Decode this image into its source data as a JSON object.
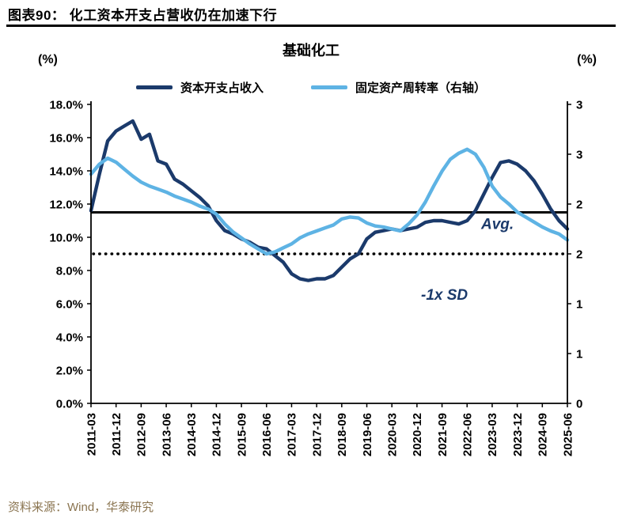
{
  "header": {
    "title": "图表90：  化工资本开支占营收仍在加速下行"
  },
  "footer": {
    "source": "资料来源：Wind，华泰研究"
  },
  "chart_data": {
    "type": "line",
    "title": "基础化工",
    "left_axis": {
      "unit": "(%)",
      "min": 0,
      "max": 18,
      "tick_step": 2,
      "tick_labels": [
        "18.0%",
        "16.0%",
        "14.0%",
        "12.0%",
        "10.0%",
        "8.0%",
        "6.0%",
        "4.0%",
        "2.0%",
        "0.0%"
      ]
    },
    "right_axis": {
      "unit": "(%)",
      "min": 0,
      "max": 3,
      "tick_step": 0.5,
      "tick_labels": [
        "3",
        "3",
        "2",
        "2",
        "1",
        "1",
        "0"
      ]
    },
    "x": [
      "2011-03",
      "2011-06",
      "2011-09",
      "2011-12",
      "2012-03",
      "2012-06",
      "2012-09",
      "2012-12",
      "2013-03",
      "2013-06",
      "2013-09",
      "2013-12",
      "2014-03",
      "2014-06",
      "2014-09",
      "2014-12",
      "2015-03",
      "2015-06",
      "2015-09",
      "2015-12",
      "2016-03",
      "2016-06",
      "2016-09",
      "2016-12",
      "2017-03",
      "2017-06",
      "2017-09",
      "2017-12",
      "2018-03",
      "2018-06",
      "2018-09",
      "2018-12",
      "2019-03",
      "2019-06",
      "2019-09",
      "2019-12",
      "2020-03",
      "2020-06",
      "2020-09",
      "2020-12",
      "2021-03",
      "2021-06",
      "2021-09",
      "2021-12",
      "2022-03",
      "2022-06",
      "2022-09",
      "2022-12",
      "2023-03",
      "2023-06",
      "2023-09",
      "2023-12",
      "2024-03",
      "2024-06",
      "2024-09",
      "2024-12",
      "2025-03",
      "2025-06"
    ],
    "x_tick_every": 3,
    "series": [
      {
        "name": "资本开支占收入",
        "axis": "left",
        "color": "#1b3a6b",
        "values": [
          11.6,
          13.8,
          15.8,
          16.4,
          16.7,
          17.0,
          15.9,
          16.2,
          14.6,
          14.4,
          13.5,
          13.2,
          12.8,
          12.4,
          11.9,
          11.0,
          10.4,
          10.2,
          9.9,
          9.7,
          9.4,
          9.3,
          8.9,
          8.5,
          7.8,
          7.5,
          7.4,
          7.5,
          7.5,
          7.7,
          8.2,
          8.7,
          9.0,
          9.9,
          10.3,
          10.4,
          10.5,
          10.4,
          10.5,
          10.6,
          10.9,
          11.0,
          11.0,
          10.9,
          10.8,
          11.0,
          11.6,
          12.6,
          13.6,
          14.5,
          14.6,
          14.4,
          14.0,
          13.4,
          12.6,
          11.7,
          11.0,
          10.5
        ]
      },
      {
        "name": "固定资产周转率（右轴）",
        "axis": "right",
        "color": "#5eb3e4",
        "values": [
          2.3,
          2.4,
          2.46,
          2.42,
          2.35,
          2.28,
          2.22,
          2.18,
          2.15,
          2.12,
          2.08,
          2.05,
          2.02,
          1.98,
          1.95,
          1.9,
          1.8,
          1.72,
          1.66,
          1.6,
          1.55,
          1.5,
          1.52,
          1.56,
          1.6,
          1.66,
          1.7,
          1.73,
          1.76,
          1.79,
          1.85,
          1.87,
          1.86,
          1.81,
          1.78,
          1.77,
          1.75,
          1.73,
          1.8,
          1.89,
          2.02,
          2.18,
          2.33,
          2.45,
          2.51,
          2.55,
          2.5,
          2.37,
          2.18,
          2.07,
          2.0,
          1.92,
          1.87,
          1.82,
          1.77,
          1.73,
          1.7,
          1.64
        ]
      }
    ],
    "reference_lines": [
      {
        "label": "Avg.",
        "value": 11.5,
        "axis": "left",
        "style": "solid"
      },
      {
        "label": "-1x SD",
        "value": 9.0,
        "axis": "left",
        "style": "dotted"
      }
    ]
  }
}
